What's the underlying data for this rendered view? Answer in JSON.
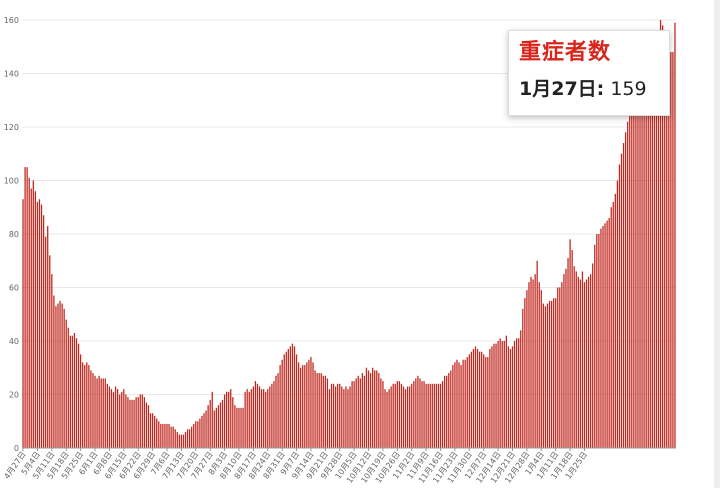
{
  "tooltip": {
    "title": "重症者数",
    "date_label": "1月27日:",
    "value": "159"
  },
  "colors": {
    "bar": "#c0281f",
    "tooltip_title": "#d9261c"
  },
  "chart_data": {
    "type": "bar",
    "title": "",
    "xlabel": "",
    "ylabel": "",
    "ylim": [
      0,
      160
    ],
    "yticks": [
      0,
      20,
      40,
      60,
      80,
      100,
      120,
      140,
      160
    ],
    "grid": true,
    "x_tick_labels": [
      "4月27日",
      "5月4日",
      "5月11日",
      "5月18日",
      "5月25日",
      "6月1日",
      "6月8日",
      "6月15日",
      "6月22日",
      "6月29日",
      "7月6日",
      "7月13日",
      "7月20日",
      "7月27日",
      "8月3日",
      "8月10日",
      "8月17日",
      "8月24日",
      "8月31日",
      "9月7日",
      "9月14日",
      "9月21日",
      "9月28日",
      "10月5日",
      "10月12日",
      "10月19日",
      "10月26日",
      "11月2日",
      "11月9日",
      "11月16日",
      "11月23日",
      "11月30日",
      "12月7日",
      "12月14日",
      "12月21日",
      "12月28日",
      "1月4日",
      "1月11日",
      "1月18日",
      "1月25日"
    ],
    "series": [
      {
        "values": [
          93,
          105,
          105,
          101,
          97,
          100,
          96,
          92,
          93,
          91,
          87,
          79,
          83,
          72,
          65,
          57,
          53,
          54,
          55,
          54,
          52,
          48,
          45,
          42,
          42,
          43,
          41,
          39,
          35,
          32,
          31,
          32,
          31,
          29,
          28,
          27,
          26,
          27,
          26,
          26,
          26,
          24,
          23,
          22,
          21,
          23,
          22,
          20,
          21,
          22,
          20,
          19,
          18,
          18,
          18,
          19,
          19,
          20,
          20,
          19,
          17,
          16,
          13,
          13,
          12,
          11,
          10,
          9,
          9,
          9,
          9,
          9,
          8,
          8,
          7,
          6,
          5,
          5,
          5,
          6,
          7,
          7,
          8,
          9,
          10,
          10,
          11,
          12,
          13,
          14,
          16,
          18,
          21,
          14,
          15,
          16,
          17,
          18,
          20,
          21,
          21,
          22,
          19,
          16,
          15,
          15,
          15,
          15,
          21,
          22,
          21,
          22,
          23,
          25,
          24,
          23,
          22,
          22,
          21,
          22,
          23,
          24,
          25,
          27,
          28,
          31,
          33,
          35,
          36,
          37,
          38,
          39,
          38,
          35,
          32,
          30,
          31,
          31,
          32,
          33,
          34,
          32,
          29,
          28,
          28,
          28,
          27,
          27,
          26,
          22,
          24,
          24,
          23,
          24,
          24,
          23,
          22,
          23,
          22,
          23,
          25,
          25,
          26,
          27,
          26,
          28,
          27,
          30,
          29,
          28,
          30,
          29,
          29,
          28,
          26,
          25,
          22,
          21,
          22,
          23,
          24,
          24,
          25,
          25,
          24,
          23,
          22,
          23,
          23,
          24,
          25,
          26,
          27,
          26,
          25,
          25,
          24,
          24,
          24,
          24,
          24,
          24,
          24,
          24,
          25,
          27,
          27,
          28,
          29,
          31,
          32,
          33,
          32,
          31,
          33,
          33,
          34,
          35,
          36,
          37,
          38,
          37,
          36,
          36,
          35,
          34,
          34,
          37,
          38,
          39,
          39,
          40,
          41,
          40,
          40,
          42,
          38,
          37,
          38,
          40,
          41,
          41,
          44,
          52,
          56,
          59,
          62,
          64,
          63,
          65,
          70,
          62,
          59,
          54,
          53,
          54,
          55,
          55,
          56,
          56,
          60,
          60,
          62,
          65,
          67,
          71,
          78,
          74,
          68,
          66,
          64,
          63,
          66,
          62,
          63,
          64,
          65,
          69,
          76,
          80,
          80,
          82,
          83,
          84,
          85,
          86,
          90,
          92,
          95,
          100,
          106,
          110,
          114,
          118,
          122,
          126,
          128,
          130,
          132,
          134,
          135,
          138,
          140,
          142,
          144,
          146,
          148,
          150,
          152,
          154,
          160,
          158,
          152,
          150,
          156,
          148,
          148,
          159
        ]
      }
    ]
  }
}
